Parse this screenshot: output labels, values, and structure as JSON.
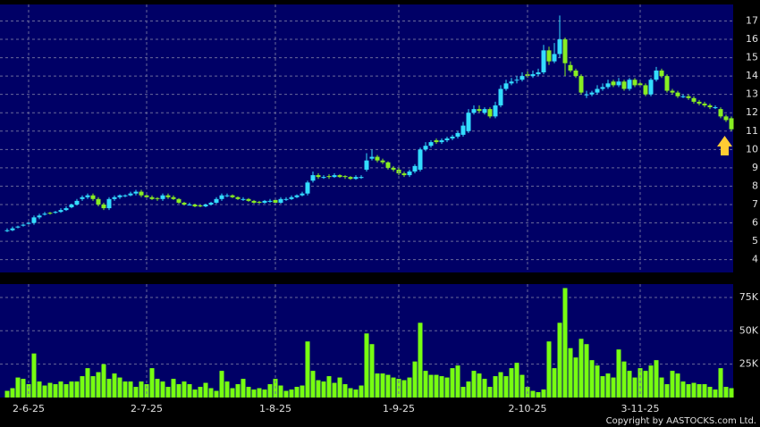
{
  "chart_data": [
    {
      "type": "candlestick",
      "open": [
        5.55,
        5.6,
        5.75,
        5.85,
        5.95,
        6.0,
        6.3,
        6.45,
        6.55,
        6.55,
        6.6,
        6.7,
        6.85,
        7.0,
        7.3,
        7.4,
        7.5,
        7.3,
        7.0,
        6.8,
        7.3,
        7.4,
        7.45,
        7.5,
        7.6,
        7.7,
        7.5,
        7.4,
        7.35,
        7.3,
        7.5,
        7.4,
        7.3,
        7.1,
        7.0,
        7.0,
        6.95,
        6.9,
        7.0,
        7.1,
        7.3,
        7.5,
        7.5,
        7.4,
        7.3,
        7.3,
        7.2,
        7.15,
        7.1,
        7.2,
        7.25,
        7.1,
        7.3,
        7.3,
        7.4,
        7.5,
        7.6,
        8.3,
        8.6,
        8.5,
        8.55,
        8.5,
        8.6,
        8.55,
        8.5,
        8.4,
        8.45,
        8.9,
        9.5,
        9.6,
        9.4,
        9.3,
        9.0,
        8.9,
        8.7,
        8.6,
        8.8,
        8.9,
        10.0,
        10.2,
        10.5,
        10.4,
        10.5,
        10.6,
        10.7,
        10.8,
        11.0,
        12.0,
        12.2,
        12.0,
        12.2,
        11.8,
        12.4,
        13.3,
        13.6,
        13.8,
        13.8,
        14.1,
        14.0,
        14.1,
        14.2,
        15.4,
        14.8,
        15.2,
        16.0,
        14.6,
        14.3,
        14.0,
        13.0,
        13.0,
        13.1,
        13.3,
        13.4,
        13.7,
        13.5,
        13.7,
        13.3,
        13.8,
        13.6,
        13.5,
        13.0,
        13.8,
        14.3,
        14.0,
        13.2,
        13.1,
        12.9,
        12.9,
        12.8,
        12.6,
        12.5,
        12.4,
        12.3,
        12.2,
        11.8,
        11.7
      ],
      "high": [
        5.7,
        5.8,
        5.85,
        5.95,
        6.05,
        6.4,
        6.5,
        6.6,
        6.6,
        6.65,
        6.8,
        6.9,
        7.05,
        7.3,
        7.5,
        7.6,
        7.6,
        7.4,
        7.1,
        7.4,
        7.5,
        7.55,
        7.55,
        7.7,
        7.8,
        7.8,
        7.6,
        7.5,
        7.4,
        7.6,
        7.6,
        7.5,
        7.35,
        7.15,
        7.1,
        7.05,
        7.0,
        7.05,
        7.15,
        7.4,
        7.6,
        7.6,
        7.55,
        7.45,
        7.4,
        7.35,
        7.25,
        7.2,
        7.25,
        7.3,
        7.3,
        7.4,
        7.4,
        7.5,
        7.55,
        7.7,
        8.3,
        8.8,
        8.7,
        8.6,
        8.65,
        8.7,
        8.65,
        8.6,
        8.55,
        8.6,
        8.6,
        9.8,
        10.0,
        9.7,
        9.5,
        9.35,
        9.1,
        9.0,
        8.8,
        8.9,
        9.2,
        10.1,
        10.4,
        10.5,
        10.6,
        10.6,
        10.7,
        10.8,
        11.0,
        11.5,
        12.2,
        12.4,
        12.4,
        12.3,
        12.3,
        12.6,
        13.5,
        13.8,
        13.9,
        14.0,
        14.2,
        14.3,
        14.3,
        14.4,
        15.7,
        15.6,
        15.8,
        17.3,
        16.1,
        14.8,
        14.4,
        14.1,
        13.2,
        13.2,
        13.5,
        13.6,
        13.8,
        13.8,
        13.9,
        13.8,
        13.9,
        13.9,
        13.7,
        13.6,
        13.9,
        14.5,
        14.4,
        14.1,
        13.3,
        13.2,
        13.0,
        13.0,
        12.9,
        12.7,
        12.6,
        12.5,
        12.4,
        12.3,
        11.9,
        11.8
      ],
      "low": [
        5.5,
        5.55,
        5.7,
        5.8,
        5.9,
        5.9,
        6.2,
        6.4,
        6.45,
        6.5,
        6.55,
        6.65,
        6.8,
        6.95,
        7.2,
        7.3,
        7.2,
        6.9,
        6.7,
        6.7,
        7.2,
        7.3,
        7.4,
        7.45,
        7.5,
        7.4,
        7.35,
        7.25,
        7.2,
        7.2,
        7.3,
        7.25,
        7.05,
        6.95,
        6.95,
        6.85,
        6.85,
        6.85,
        6.95,
        7.05,
        7.2,
        7.4,
        7.35,
        7.25,
        7.2,
        7.15,
        7.05,
        7.05,
        7.05,
        7.1,
        7.05,
        7.05,
        7.2,
        7.25,
        7.35,
        7.45,
        7.5,
        8.2,
        8.4,
        8.4,
        8.4,
        8.45,
        8.45,
        8.4,
        8.35,
        8.35,
        8.4,
        8.8,
        9.4,
        9.3,
        9.2,
        8.9,
        8.8,
        8.6,
        8.5,
        8.5,
        8.7,
        8.8,
        9.9,
        10.1,
        10.3,
        10.3,
        10.4,
        10.5,
        10.6,
        10.7,
        10.9,
        11.9,
        12.0,
        11.9,
        11.7,
        11.7,
        12.3,
        13.2,
        13.5,
        13.6,
        13.7,
        13.9,
        13.9,
        14.0,
        14.1,
        14.6,
        14.7,
        15.0,
        14.0,
        14.2,
        13.9,
        13.0,
        12.8,
        12.9,
        13.0,
        13.2,
        13.3,
        13.4,
        13.4,
        13.2,
        13.2,
        13.4,
        13.4,
        12.9,
        12.9,
        13.7,
        13.9,
        13.1,
        13.0,
        12.8,
        12.8,
        12.7,
        12.5,
        12.4,
        12.3,
        12.2,
        12.2,
        11.7,
        11.5,
        11.0
      ],
      "close": [
        5.6,
        5.7,
        5.8,
        5.9,
        6.0,
        6.3,
        6.4,
        6.5,
        6.5,
        6.6,
        6.7,
        6.8,
        7.0,
        7.2,
        7.4,
        7.5,
        7.3,
        7.0,
        6.8,
        7.3,
        7.4,
        7.5,
        7.5,
        7.6,
        7.7,
        7.5,
        7.4,
        7.3,
        7.3,
        7.5,
        7.4,
        7.3,
        7.1,
        7.0,
        7.0,
        6.9,
        6.9,
        7.0,
        7.1,
        7.3,
        7.5,
        7.5,
        7.4,
        7.3,
        7.3,
        7.2,
        7.1,
        7.1,
        7.2,
        7.2,
        7.1,
        7.3,
        7.3,
        7.4,
        7.5,
        7.6,
        8.2,
        8.6,
        8.5,
        8.5,
        8.5,
        8.6,
        8.5,
        8.5,
        8.4,
        8.5,
        8.5,
        9.4,
        9.6,
        9.4,
        9.3,
        9.0,
        8.9,
        8.7,
        8.6,
        8.8,
        9.1,
        10.0,
        10.2,
        10.4,
        10.4,
        10.5,
        10.6,
        10.7,
        10.9,
        11.3,
        12.0,
        12.2,
        12.1,
        12.2,
        11.8,
        12.4,
        13.3,
        13.6,
        13.7,
        13.8,
        14.0,
        14.0,
        14.1,
        14.2,
        15.4,
        14.8,
        15.2,
        16.0,
        14.7,
        14.3,
        14.0,
        13.1,
        13.0,
        13.1,
        13.3,
        13.4,
        13.6,
        13.5,
        13.7,
        13.3,
        13.8,
        13.5,
        13.5,
        13.0,
        13.8,
        14.3,
        14.0,
        13.2,
        13.1,
        12.9,
        12.9,
        12.8,
        12.6,
        12.5,
        12.4,
        12.3,
        12.3,
        11.8,
        11.6,
        11.1
      ],
      "up_color": "#33ddff",
      "down_color": "#88ee22",
      "ylim": [
        3.3,
        17.9
      ],
      "yticks": [
        4,
        5,
        6,
        7,
        8,
        9,
        10,
        11,
        12,
        13,
        14,
        15,
        16,
        17
      ],
      "grid": true
    },
    {
      "type": "bar",
      "categories": [
        null,
        null,
        null,
        null,
        "2-6-25",
        null,
        null,
        null,
        null,
        null,
        null,
        null,
        null,
        null,
        null,
        null,
        null,
        null,
        null,
        null,
        null,
        null,
        null,
        null,
        null,
        null,
        "2-7-25",
        null,
        null,
        null,
        null,
        null,
        null,
        null,
        null,
        null,
        null,
        null,
        null,
        null,
        null,
        null,
        null,
        null,
        null,
        null,
        null,
        null,
        null,
        null,
        "1-8-25",
        null,
        null,
        null,
        null,
        null,
        null,
        null,
        null,
        null,
        null,
        null,
        null,
        null,
        null,
        null,
        null,
        null,
        null,
        null,
        null,
        null,
        null,
        "1-9-25",
        null,
        null,
        null,
        null,
        null,
        null,
        null,
        null,
        null,
        null,
        null,
        null,
        null,
        null,
        null,
        null,
        null,
        null,
        null,
        null,
        null,
        null,
        null,
        "2-10-25",
        null,
        null,
        null,
        null,
        null,
        null,
        null,
        null,
        null,
        null,
        null,
        null,
        null,
        null,
        null,
        null,
        null,
        null,
        null,
        null,
        "3-11-25",
        null,
        null,
        null,
        null,
        null,
        null,
        null,
        null,
        null,
        null,
        null,
        null,
        null,
        null,
        null,
        null,
        null
      ],
      "values": [
        5000,
        7000,
        15000,
        14000,
        10000,
        33000,
        12000,
        9000,
        11000,
        10000,
        12000,
        10000,
        12000,
        12000,
        16000,
        22000,
        16000,
        19000,
        25000,
        14000,
        18000,
        15000,
        12000,
        12000,
        8000,
        12000,
        10000,
        22000,
        14000,
        12000,
        8000,
        14000,
        10000,
        12000,
        10000,
        6000,
        8000,
        11000,
        7000,
        5000,
        20000,
        12000,
        7000,
        10000,
        14000,
        8000,
        6000,
        7000,
        6000,
        10000,
        14000,
        9000,
        5000,
        6000,
        8000,
        9000,
        42000,
        20000,
        13000,
        12000,
        16000,
        11000,
        15000,
        10000,
        7000,
        6000,
        9000,
        48000,
        40000,
        18000,
        18000,
        17000,
        15000,
        14000,
        13000,
        15000,
        27000,
        56000,
        20000,
        17000,
        17000,
        16000,
        15000,
        22000,
        24000,
        8000,
        12000,
        20000,
        18000,
        14000,
        8000,
        16000,
        19000,
        16000,
        22000,
        26000,
        17000,
        8000,
        5000,
        4000,
        6000,
        42000,
        22000,
        56000,
        82000,
        37000,
        30000,
        44000,
        40000,
        28000,
        24000,
        16000,
        18000,
        15000,
        36000,
        27000,
        20000,
        15000,
        22000,
        20000,
        24000,
        28000,
        15000,
        10000,
        20000,
        18000,
        12000,
        10000,
        11000,
        10000,
        10000,
        8000,
        6000,
        22000,
        8000,
        7000
      ],
      "color": "#77ff11",
      "ylim": [
        0,
        85000
      ],
      "yticks": [
        {
          "value": 25000,
          "label": "25K"
        },
        {
          "value": 50000,
          "label": "50K"
        },
        {
          "value": 75000,
          "label": "75K"
        }
      ],
      "grid": true
    }
  ],
  "copyright": "Copyright by AASTOCKS.com Ltd."
}
